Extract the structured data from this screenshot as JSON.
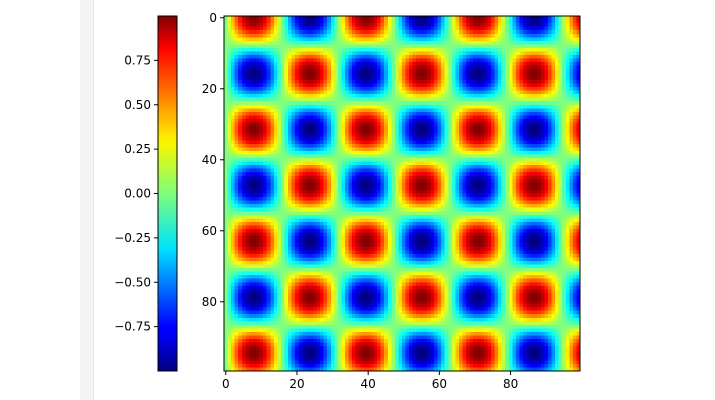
{
  "chart_data": {
    "type": "heatmap",
    "colormap": "jet",
    "grid": false,
    "function": "sin(2*pi*x/31.5) * cos(2*pi*y/31.5)",
    "shape": [
      100,
      100
    ],
    "value_range": [
      -1.0,
      1.0
    ],
    "x_ticks": [
      "0",
      "20",
      "40",
      "60",
      "80"
    ],
    "x_tick_values": [
      0,
      20,
      40,
      60,
      80
    ],
    "y_ticks": [
      "0",
      "20",
      "40",
      "60",
      "80"
    ],
    "y_tick_values": [
      0,
      20,
      40,
      60,
      80
    ],
    "colorbar": {
      "placement": "left",
      "ticks": [
        "0.75",
        "0.50",
        "0.25",
        "0.00",
        "−0.25",
        "−0.50",
        "−0.75"
      ],
      "tick_values": [
        0.75,
        0.5,
        0.25,
        0.0,
        -0.25,
        -0.5,
        -0.75
      ]
    }
  }
}
